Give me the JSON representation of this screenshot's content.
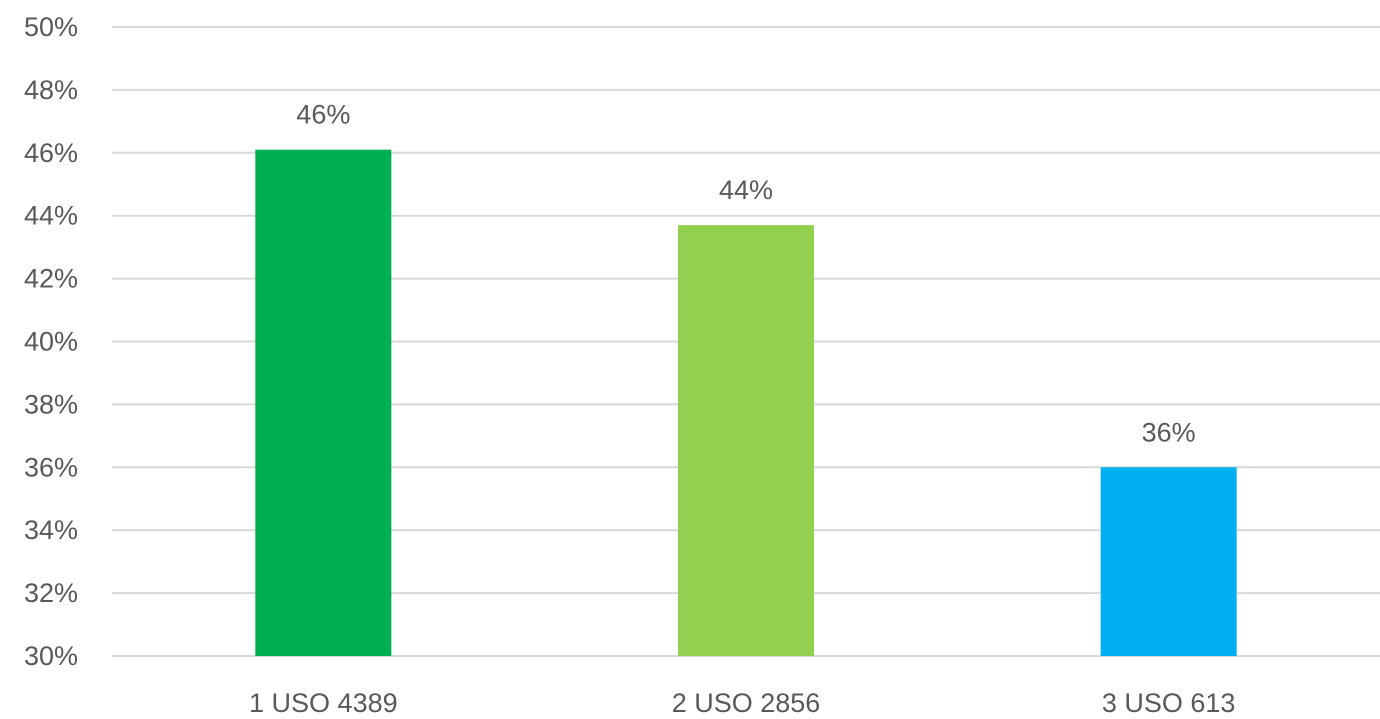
{
  "chart_data": {
    "type": "bar",
    "title": "",
    "xlabel": "",
    "ylabel": "",
    "categories": [
      "1 USO 4389",
      "2 USO 2856",
      "3 USO 613"
    ],
    "values": [
      46.1,
      43.7,
      36.0
    ],
    "data_labels": [
      "46%",
      "44%",
      "36%"
    ],
    "colors": [
      "#00b050",
      "#92d050",
      "#00b0f0"
    ],
    "ylim": [
      30,
      50
    ],
    "yticks": [
      30,
      32,
      34,
      36,
      38,
      40,
      42,
      44,
      46,
      48,
      50
    ],
    "ytick_labels": [
      "30%",
      "32%",
      "34%",
      "36%",
      "38%",
      "40%",
      "42%",
      "44%",
      "46%",
      "48%",
      "50%"
    ],
    "grid": true,
    "legend": "none",
    "grid_color": "#d9d9d9",
    "text_color": "#595959"
  }
}
